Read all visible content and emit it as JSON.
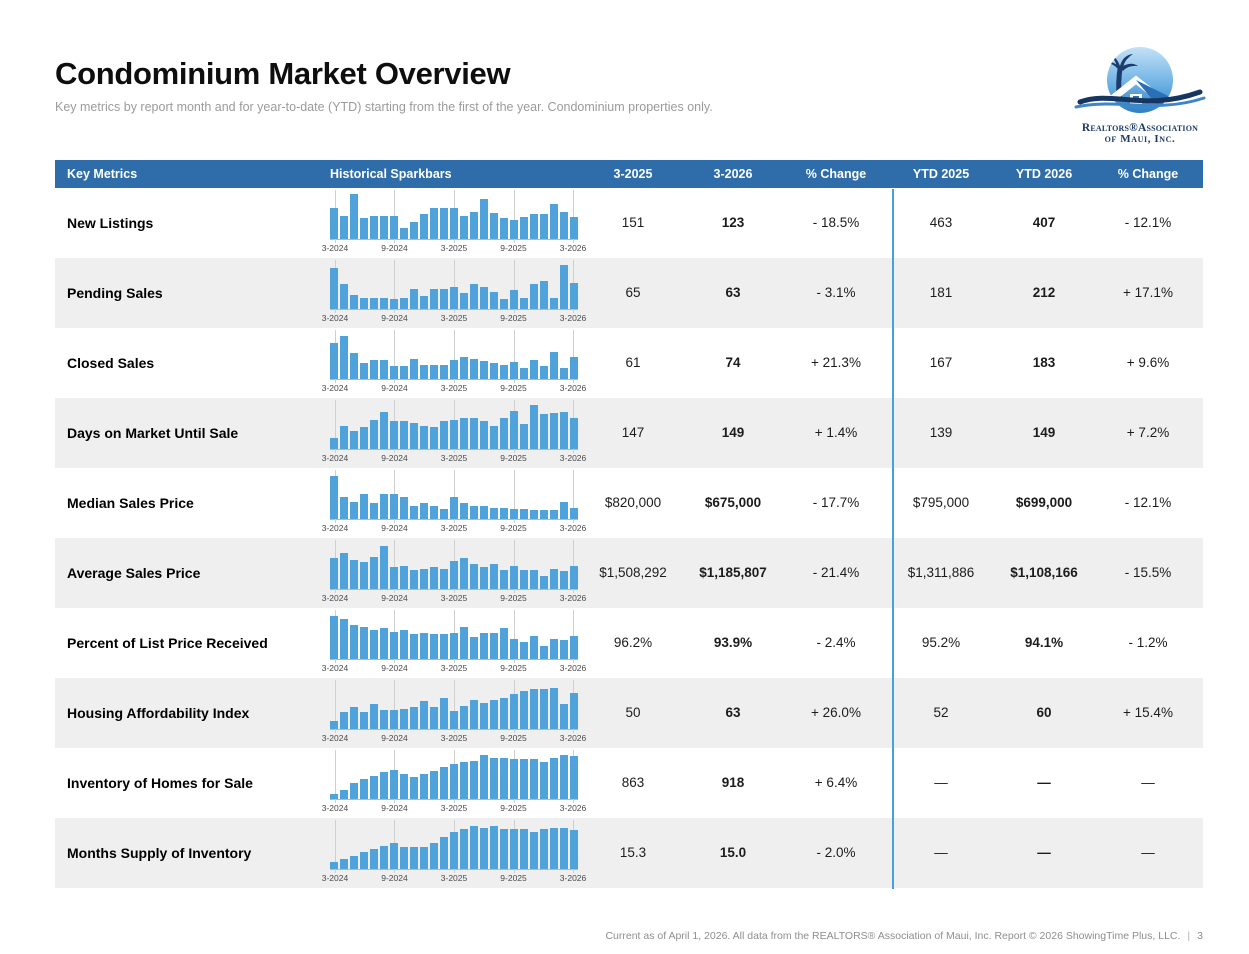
{
  "page": {
    "title": "Condominium Market Overview",
    "subtitle": "Key metrics by report month and for year-to-date (YTD) starting from the first of the year. Condominium properties only.",
    "logo": {
      "line1": "Realtors®Association",
      "line2": "of Maui, Inc."
    },
    "footer": {
      "text": "Current as of April 1, 2026. All data from the REALTORS® Association of Maui, Inc. Report © 2026 ShowingTime Plus, LLC.",
      "separator": "|",
      "page_number": "3"
    }
  },
  "colors": {
    "header_bg": "#2e6da9",
    "bar_fill": "#4fa3da",
    "ytd_divider": "#48a0d9",
    "row_alt_bg": "#efefef"
  },
  "table": {
    "headers": [
      "Key Metrics",
      "Historical Sparkbars",
      "3-2025",
      "3-2026",
      "% Change",
      "YTD 2025",
      "YTD 2026",
      "% Change"
    ],
    "sparkline_ticks": [
      "3-2024",
      "9-2024",
      "3-2025",
      "9-2025",
      "3-2026"
    ],
    "sparkline_tick_indices": [
      0,
      6,
      12,
      18,
      24
    ],
    "rows": [
      {
        "metric": "New Listings",
        "spark": [
          70,
          52,
          100,
          47,
          52,
          52,
          52,
          25,
          38,
          55,
          70,
          70,
          68,
          52,
          60,
          90,
          57,
          47,
          42,
          50,
          55,
          55,
          78,
          60,
          50
        ],
        "m_2025": "151",
        "m_2026": "123",
        "m_change": "- 18.5%",
        "ytd_2025": "463",
        "ytd_2026": "407",
        "ytd_change": "- 12.1%"
      },
      {
        "metric": "Pending Sales",
        "spark": [
          92,
          55,
          32,
          25,
          25,
          25,
          22,
          25,
          45,
          28,
          45,
          45,
          48,
          35,
          55,
          48,
          38,
          22,
          42,
          25,
          55,
          62,
          25,
          98,
          58
        ],
        "m_2025": "65",
        "m_2026": "63",
        "m_change": "- 3.1%",
        "ytd_2025": "181",
        "ytd_2026": "212",
        "ytd_change": "+ 17.1%"
      },
      {
        "metric": "Closed Sales",
        "spark": [
          80,
          95,
          58,
          35,
          42,
          42,
          30,
          28,
          45,
          32,
          32,
          32,
          42,
          48,
          45,
          40,
          35,
          32,
          38,
          25,
          42,
          30,
          60,
          25,
          50
        ],
        "m_2025": "61",
        "m_2026": "74",
        "m_change": "+ 21.3%",
        "ytd_2025": "167",
        "ytd_2026": "183",
        "ytd_change": "+ 9.6%"
      },
      {
        "metric": "Days on Market Until Sale",
        "spark": [
          25,
          52,
          40,
          48,
          65,
          82,
          62,
          62,
          58,
          52,
          48,
          62,
          65,
          70,
          68,
          62,
          52,
          68,
          85,
          55,
          98,
          78,
          80,
          82,
          70
        ],
        "m_2025": "147",
        "m_2026": "149",
        "m_change": "+ 1.4%",
        "ytd_2025": "139",
        "ytd_2026": "149",
        "ytd_change": "+ 7.2%"
      },
      {
        "metric": "Median Sales Price",
        "spark": [
          95,
          50,
          38,
          55,
          35,
          55,
          55,
          48,
          30,
          35,
          28,
          22,
          50,
          35,
          28,
          30,
          25,
          25,
          22,
          22,
          20,
          20,
          20,
          38,
          25
        ],
        "m_2025": "$820,000",
        "m_2026": "$675,000",
        "m_change": "- 17.7%",
        "ytd_2025": "$795,000",
        "ytd_2026": "$699,000",
        "ytd_change": "- 12.1%"
      },
      {
        "metric": "Average Sales Price",
        "spark": [
          70,
          80,
          65,
          60,
          72,
          95,
          50,
          52,
          42,
          45,
          48,
          45,
          62,
          68,
          55,
          48,
          55,
          42,
          52,
          42,
          42,
          30,
          45,
          40,
          52
        ],
        "m_2025": "$1,508,292",
        "m_2026": "$1,185,807",
        "m_change": "- 21.4%",
        "ytd_2025": "$1,311,886",
        "ytd_2026": "$1,108,166",
        "ytd_change": "- 15.5%"
      },
      {
        "metric": "Percent of List Price Received",
        "spark": [
          95,
          88,
          75,
          72,
          65,
          70,
          60,
          65,
          55,
          58,
          55,
          55,
          58,
          72,
          50,
          58,
          58,
          68,
          45,
          38,
          52,
          30,
          45,
          42,
          52
        ],
        "m_2025": "96.2%",
        "m_2026": "93.9%",
        "m_change": "- 2.4%",
        "ytd_2025": "95.2%",
        "ytd_2026": "94.1%",
        "ytd_change": "- 1.2%"
      },
      {
        "metric": "Housing Affordability Index",
        "spark": [
          18,
          38,
          50,
          38,
          55,
          42,
          42,
          45,
          48,
          62,
          48,
          68,
          40,
          52,
          65,
          58,
          65,
          70,
          78,
          85,
          90,
          88,
          92,
          55,
          80
        ],
        "m_2025": "50",
        "m_2026": "63",
        "m_change": "+ 26.0%",
        "ytd_2025": "52",
        "ytd_2026": "60",
        "ytd_change": "+ 15.4%"
      },
      {
        "metric": "Inventory of Homes for Sale",
        "spark": [
          12,
          20,
          35,
          45,
          52,
          60,
          65,
          55,
          50,
          55,
          62,
          72,
          78,
          82,
          85,
          98,
          92,
          92,
          90,
          88,
          90,
          82,
          92,
          97,
          95
        ],
        "m_2025": "863",
        "m_2026": "918",
        "m_change": "+ 6.4%",
        "ytd_2025": "—",
        "ytd_2026": "—",
        "ytd_change": "—"
      },
      {
        "metric": "Months Supply of Inventory",
        "spark": [
          15,
          22,
          30,
          38,
          45,
          52,
          58,
          50,
          48,
          50,
          58,
          72,
          82,
          88,
          95,
          92,
          95,
          88,
          88,
          88,
          82,
          88,
          92,
          92,
          86
        ],
        "m_2025": "15.3",
        "m_2026": "15.0",
        "m_change": "- 2.0%",
        "ytd_2025": "—",
        "ytd_2026": "—",
        "ytd_change": "—"
      }
    ]
  }
}
